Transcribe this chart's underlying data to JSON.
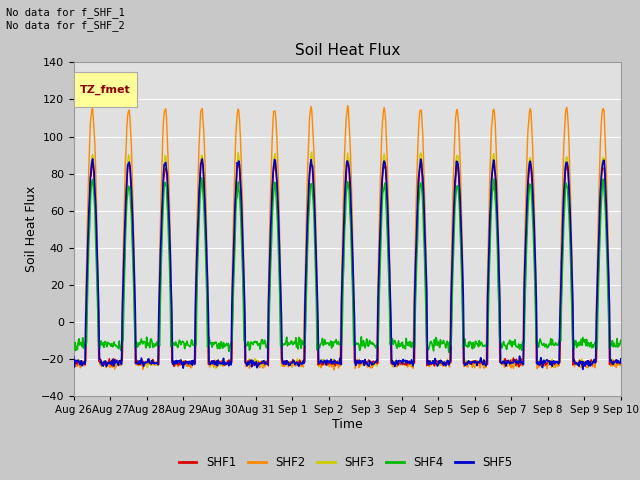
{
  "title": "Soil Heat Flux",
  "xlabel": "Time",
  "ylabel": "Soil Heat Flux",
  "ylim": [
    -40,
    140
  ],
  "yticks": [
    -40,
    -20,
    0,
    20,
    40,
    60,
    80,
    100,
    120,
    140
  ],
  "bg_color": "#c8c8c8",
  "plot_bg_color": "#e0e0e0",
  "grid_color": "#ffffff",
  "annotation_text": "No data for f_SHF_1\nNo data for f_SHF_2",
  "legend_label": "TZ_fmet",
  "legend_box_color": "#ffff99",
  "legend_text_color": "#8b0000",
  "series_colors": {
    "SHF1": "#dd0000",
    "SHF2": "#ff8800",
    "SHF3": "#cccc00",
    "SHF4": "#00bb00",
    "SHF5": "#0000cc"
  },
  "tick_labels": [
    "Aug 26",
    "Aug 27",
    "Aug 28",
    "Aug 29",
    "Aug 30",
    "Aug 31",
    "Sep 1",
    "Sep 2",
    "Sep 3",
    "Sep 4",
    "Sep 5",
    "Sep 6",
    "Sep 7",
    "Sep 8",
    "Sep 9",
    "Sep 10"
  ],
  "n_days": 15,
  "spd": 48
}
